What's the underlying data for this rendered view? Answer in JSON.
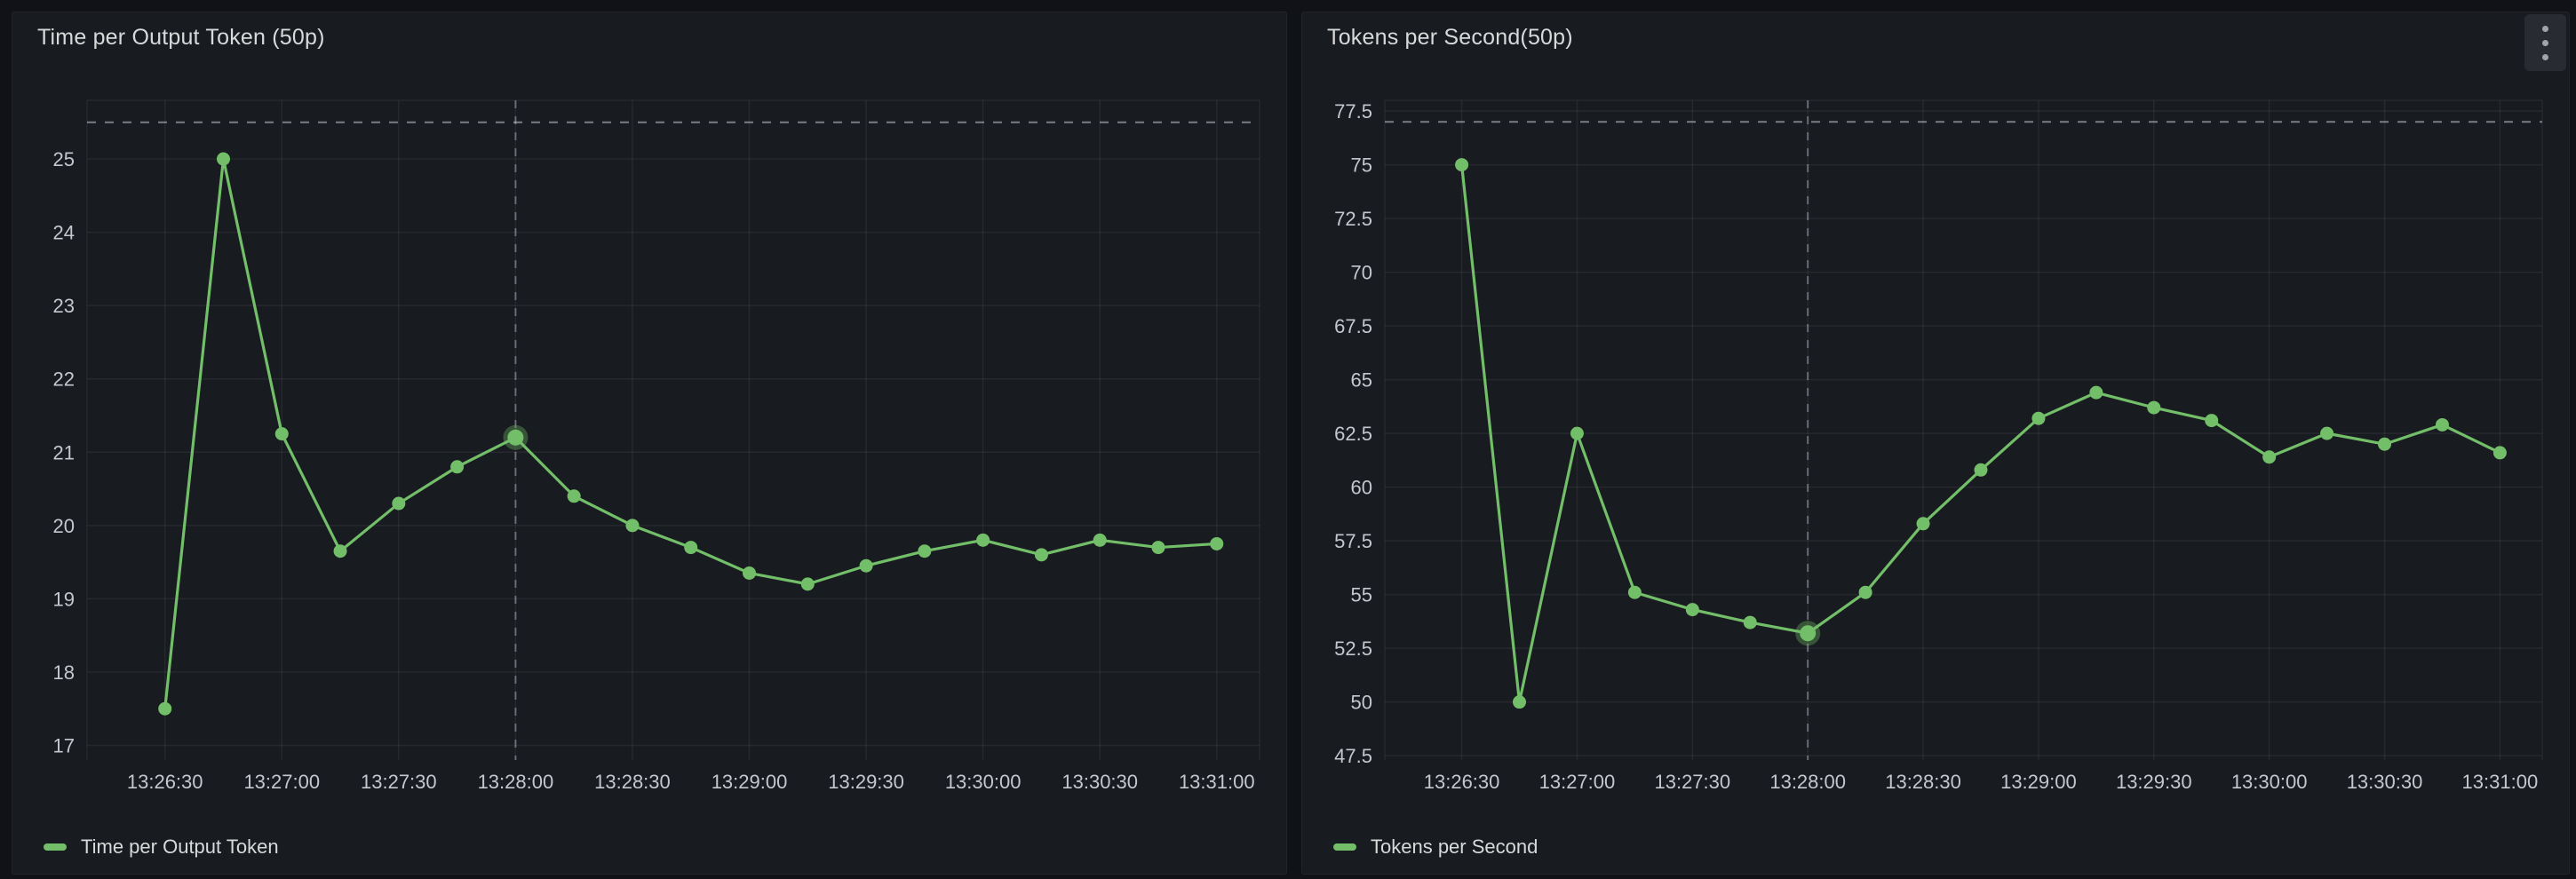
{
  "canvas": {
    "background": "#111217",
    "panel_background": "#181b1f",
    "panel_border": "#232429",
    "grid_color": "rgba(204,204,220,0.08)",
    "dashed_line_color": "rgba(204,204,220,0.55)",
    "crosshair_color": "rgba(204,204,220,0.42)",
    "tick_text_color": "#c6c7ce",
    "title_text_color": "#d8d9da",
    "accent_green": "#73BF69"
  },
  "panels": [
    {
      "title": "Time per Output Token (50p)",
      "legend_label": "Time per Output Token",
      "show_menu": false
    },
    {
      "title": "Tokens per Second(50p)",
      "legend_label": "Tokens per Second",
      "show_menu": true
    }
  ],
  "chart_data": [
    {
      "type": "line",
      "title": "Time per Output Token (50p)",
      "xlabel": "",
      "ylabel": "",
      "x": [
        "13:26:30",
        "13:26:45",
        "13:27:00",
        "13:27:15",
        "13:27:30",
        "13:27:45",
        "13:28:00",
        "13:28:15",
        "13:28:30",
        "13:28:45",
        "13:29:00",
        "13:29:15",
        "13:29:30",
        "13:29:45",
        "13:30:00",
        "13:30:15",
        "13:30:30",
        "13:30:45",
        "13:31:00"
      ],
      "series": [
        {
          "name": "Time per Output Token",
          "color": "#73BF69",
          "values": [
            17.5,
            25.0,
            21.25,
            19.65,
            20.3,
            20.8,
            21.2,
            20.4,
            20.0,
            19.7,
            19.35,
            19.2,
            19.45,
            19.65,
            19.8,
            19.6,
            19.8,
            19.7,
            19.75
          ]
        }
      ],
      "x_ticks": [
        "13:26:30",
        "13:27:00",
        "13:27:30",
        "13:28:00",
        "13:28:30",
        "13:29:00",
        "13:29:30",
        "13:30:00",
        "13:30:30",
        "13:31:00"
      ],
      "y_ticks": [
        17,
        18,
        19,
        20,
        21,
        22,
        23,
        24,
        25
      ],
      "y_tick_labels": [
        "17",
        "18",
        "19",
        "20",
        "21",
        "22",
        "23",
        "24",
        "25"
      ],
      "ylim": [
        16.8,
        25.8
      ],
      "xpad_seconds": [
        20,
        11
      ],
      "threshold_y": 25.5,
      "crosshair_time": "13:28:00",
      "highlight_time": "13:28:00",
      "grid": true,
      "legend_position": "bottom-left"
    },
    {
      "type": "line",
      "title": "Tokens per Second(50p)",
      "xlabel": "",
      "ylabel": "",
      "x": [
        "13:26:30",
        "13:26:45",
        "13:27:00",
        "13:27:15",
        "13:27:30",
        "13:27:45",
        "13:28:00",
        "13:28:15",
        "13:28:30",
        "13:28:45",
        "13:29:00",
        "13:29:15",
        "13:29:30",
        "13:29:45",
        "13:30:00",
        "13:30:15",
        "13:30:30",
        "13:30:45",
        "13:31:00"
      ],
      "series": [
        {
          "name": "Tokens per Second",
          "color": "#73BF69",
          "values": [
            75.0,
            50.0,
            62.5,
            55.1,
            54.3,
            53.7,
            53.2,
            55.1,
            58.3,
            60.8,
            63.2,
            64.4,
            63.7,
            63.1,
            61.4,
            62.5,
            62.0,
            62.9,
            61.6
          ]
        }
      ],
      "x_ticks": [
        "13:26:30",
        "13:27:00",
        "13:27:30",
        "13:28:00",
        "13:28:30",
        "13:29:00",
        "13:29:30",
        "13:30:00",
        "13:30:30",
        "13:31:00"
      ],
      "y_ticks": [
        47.5,
        50,
        52.5,
        55,
        57.5,
        60,
        62.5,
        65,
        67.5,
        70,
        72.5,
        75,
        77.5
      ],
      "y_tick_labels": [
        "47.5",
        "50",
        "52.5",
        "55",
        "57.5",
        "60",
        "62.5",
        "65",
        "67.5",
        "70",
        "72.5",
        "75",
        "77.5"
      ],
      "ylim": [
        47.3,
        78.0
      ],
      "xpad_seconds": [
        20,
        11
      ],
      "threshold_y": 77.0,
      "crosshair_time": "13:28:00",
      "highlight_time": "13:28:00",
      "grid": true,
      "legend_position": "bottom-left"
    }
  ]
}
